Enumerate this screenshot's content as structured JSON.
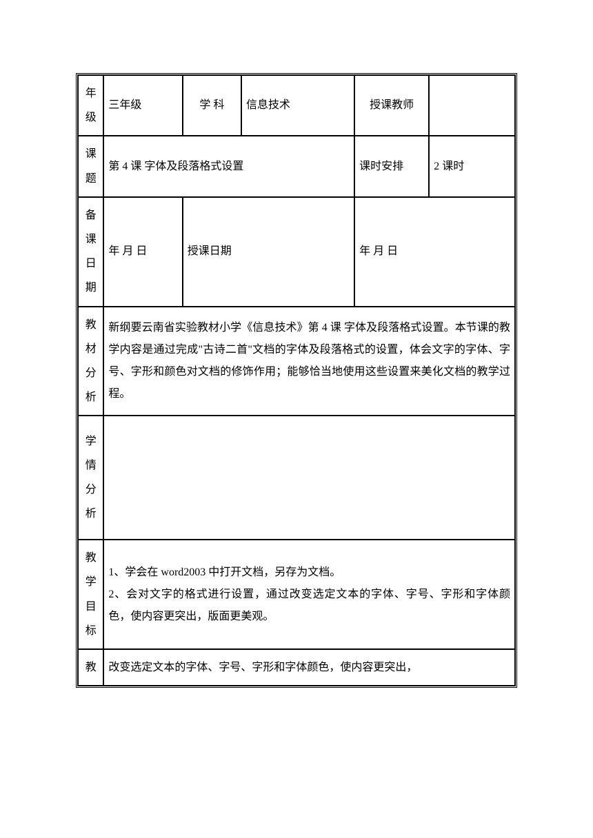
{
  "header": {
    "grade_label": "年级",
    "grade": "三年级",
    "subject_label": "学 科",
    "subject": "信息技术",
    "teacher_label": "授课教师",
    "teacher": ""
  },
  "topic": {
    "topic_label": "课题",
    "topic": "第 4 课 字体及段落格式设置",
    "schedule_label": "课时安排",
    "schedule": "2 课时"
  },
  "dates": {
    "prep_date_label": "备课日期",
    "prep_date": "年 月 日",
    "teach_date_label": "授课日期",
    "teach_date": "年 月 日"
  },
  "sections": {
    "material_analysis_label": "教材分析",
    "material_analysis": "新纲要云南省实验教材小学《信息技术》第 4 课 字体及段落格式设置。本节课的教学内容是通过完成\"古诗二首\"文档的字体及段落格式的设置，体会文字的字体、字号、字形和颜色对文档的修饰作用；能够恰当地使用这些设置来美化文档的教学过程。",
    "student_analysis_label": "学情分析",
    "student_analysis": "",
    "teaching_goal_label": "教学目标",
    "teaching_goal": "1、学会在 word2003 中打开文档，另存为文档。\n2、会对文字的格式进行设置，通过改变选定文本的字体、字号、字形和字体颜色，使内容更突出，版面更美观。",
    "teaching_key_label": "教",
    "teaching_key": "改变选定文本的字体、字号、字形和字体颜色，使内容更突出，"
  },
  "style": {
    "border_color": "#000000",
    "background": "#ffffff",
    "text_color": "#000000",
    "font_size": 16,
    "line_height": 2.0
  }
}
